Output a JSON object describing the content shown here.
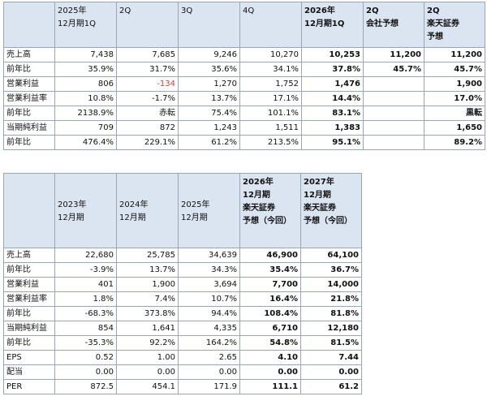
{
  "table1": {
    "headers": [
      "",
      "2025年\n12月期1Q",
      "2Q",
      "3Q",
      "4Q",
      "2026年\n12月期1Q",
      "2Q\n会社予想",
      "2Q\n楽天証券\n予想"
    ],
    "rows": [
      {
        "label": "売上高",
        "cells": [
          "7,438",
          "7,685",
          "9,246",
          "10,270",
          "10,253",
          "11,200",
          "11,200"
        ]
      },
      {
        "label": "前年比",
        "cells": [
          "35.9%",
          "31.7%",
          "35.6%",
          "34.1%",
          "37.8%",
          "45.7%",
          "45.7%"
        ]
      },
      {
        "label": "営業利益",
        "cells": [
          "806",
          "-134",
          "1,270",
          "1,752",
          "1,476",
          "",
          "1,900"
        ]
      },
      {
        "label": "営業利益率",
        "cells": [
          "10.8%",
          "-1.7%",
          "13.7%",
          "17.1%",
          "14.4%",
          "",
          "17.0%"
        ]
      },
      {
        "label": "前年比",
        "cells": [
          "2138.9%",
          "赤転",
          "75.4%",
          "101.1%",
          "83.1%",
          "",
          "黒転"
        ]
      },
      {
        "label": "当期純利益",
        "cells": [
          "709",
          "872",
          "1,243",
          "1,511",
          "1,383",
          "",
          "1,650"
        ]
      },
      {
        "label": "前年比",
        "cells": [
          "476.4%",
          "229.1%",
          "61.2%",
          "213.5%",
          "95.1%",
          "",
          "89.2%"
        ]
      }
    ]
  },
  "table2": {
    "headers": [
      "",
      "2023年\n12月期",
      "2024年\n12月期",
      "2025年\n12月期",
      "2026年\n12月期\n楽天証券\n予想（今回）",
      "2027年\n12月期\n楽天証券\n予想（今回）"
    ],
    "rows": [
      {
        "label": "売上高",
        "cells": [
          "22,680",
          "25,785",
          "34,639",
          "46,900",
          "64,100"
        ]
      },
      {
        "label": "前年比",
        "cells": [
          "-3.9%",
          "13.7%",
          "34.3%",
          "35.4%",
          "36.7%"
        ]
      },
      {
        "label": "営業利益",
        "cells": [
          "401",
          "1,900",
          "3,694",
          "7,700",
          "14,000"
        ]
      },
      {
        "label": "営業利益率",
        "cells": [
          "1.8%",
          "7.4%",
          "10.7%",
          "16.4%",
          "21.8%"
        ]
      },
      {
        "label": "前年比",
        "cells": [
          "-68.3%",
          "373.8%",
          "94.4%",
          "108.4%",
          "81.8%"
        ]
      },
      {
        "label": "当期純利益",
        "cells": [
          "854",
          "1,641",
          "4,335",
          "6,710",
          "12,180"
        ]
      },
      {
        "label": "前年比",
        "cells": [
          "-35.3%",
          "92.2%",
          "164.2%",
          "54.8%",
          "81.5%"
        ]
      },
      {
        "label": "EPS",
        "cells": [
          "0.52",
          "1.00",
          "2.65",
          "4.10",
          "7.44"
        ]
      },
      {
        "label": "配当",
        "cells": [
          "0.00",
          "0.00",
          "0.00",
          "0.00",
          "0.00"
        ]
      },
      {
        "label": "PER",
        "cells": [
          "872.5",
          "454.1",
          "171.9",
          "111.1",
          "61.2"
        ]
      }
    ]
  },
  "colors": {
    "header_bg": "#dbe4f1",
    "border": "#9aa6b6",
    "negative": "#d43a3a"
  }
}
